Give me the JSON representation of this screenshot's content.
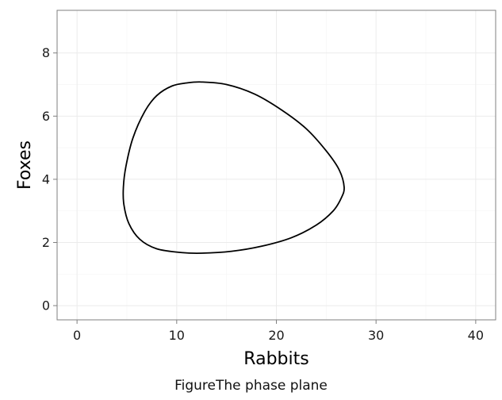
{
  "caption": {
    "prefix": "Figure",
    "text": "The phase plane"
  },
  "chart_data": {
    "type": "line",
    "title": "",
    "xlabel": "Rabbits",
    "ylabel": "Foxes",
    "xlim": [
      -2,
      42
    ],
    "ylim": [
      -0.45,
      9.35
    ],
    "xticks": [
      0,
      10,
      20,
      30,
      40
    ],
    "yticks": [
      0,
      2,
      4,
      6,
      8
    ],
    "grid": true,
    "legend": "none",
    "colors": {
      "line": "#000000",
      "grid_major": "#ebebeb",
      "grid_minor": "#f5f5f5",
      "panel_border": "#7f7f7f"
    },
    "series": [
      {
        "x": [
          26.8,
          26.3,
          25.0,
          23.0,
          20.5,
          17.8,
          15.0,
          12.5,
          11.0,
          9.5,
          8.0,
          6.8,
          5.6,
          4.9,
          4.65,
          4.7,
          5.2,
          6.3,
          8.0,
          10.5,
          12.5,
          15.5,
          18.5,
          21.5,
          24.0,
          25.7,
          26.5,
          26.8
        ],
        "y": [
          3.75,
          4.3,
          4.9,
          5.6,
          6.2,
          6.7,
          7.0,
          7.08,
          7.05,
          6.95,
          6.65,
          6.15,
          5.3,
          4.4,
          3.75,
          3.2,
          2.6,
          2.1,
          1.8,
          1.68,
          1.66,
          1.72,
          1.88,
          2.15,
          2.55,
          3.0,
          3.4,
          3.75
        ]
      }
    ]
  }
}
